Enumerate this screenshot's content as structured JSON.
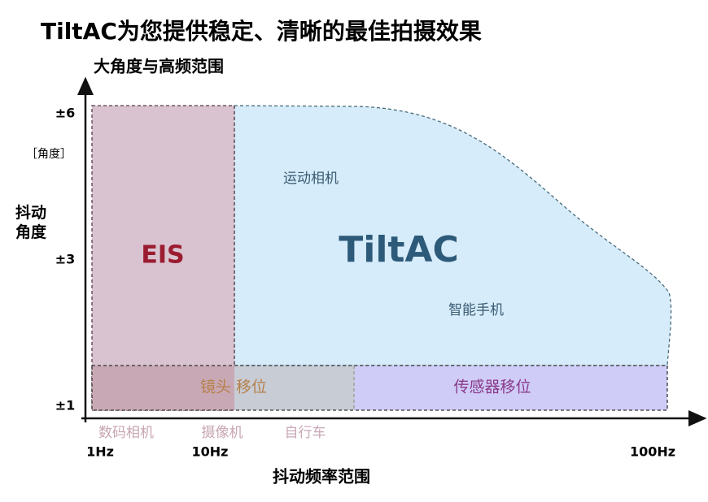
{
  "header": {
    "title": "TiltAC为您提供稳定、清晰的最佳拍摄效果",
    "subtitle": "大角度与高频范围"
  },
  "y_axis": {
    "label": "抖动角度",
    "unit": "［角度］",
    "ticks": [
      "±6",
      "±3",
      "±1"
    ]
  },
  "x_axis": {
    "label": "抖动频率范围",
    "ticks": [
      "1Hz",
      "10Hz",
      "100Hz"
    ]
  },
  "regions": {
    "eis": "EIS",
    "tiltac": "TiltAC",
    "tiltac_examples": [
      "运动相机",
      "智能手机"
    ]
  },
  "bands": {
    "lens": "镜头 移位",
    "sensor": "传感器移位"
  },
  "examples": [
    "数码相机",
    "摄像机",
    "自行车"
  ]
}
